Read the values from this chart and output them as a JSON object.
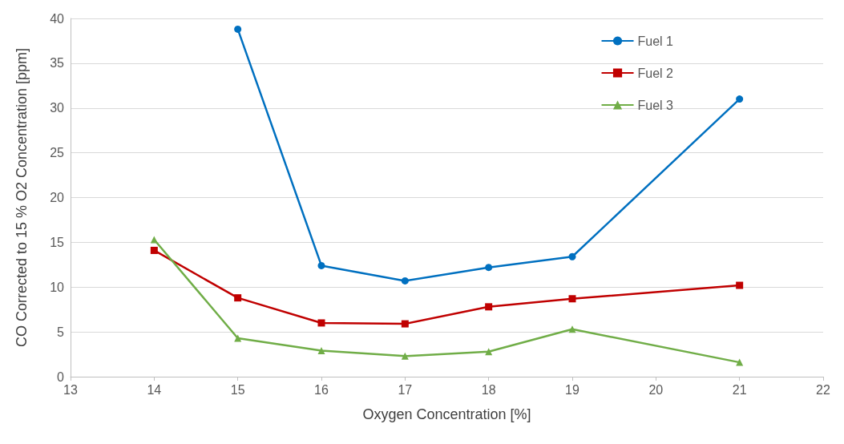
{
  "chart_data": {
    "type": "line",
    "xlabel": "Oxygen Concentration [%]",
    "ylabel": "CO Corrected to 15 % O2 Concentration [ppm]",
    "xlim": [
      13,
      22
    ],
    "xticks": [
      13,
      14,
      15,
      16,
      17,
      18,
      19,
      20,
      21,
      22
    ],
    "ylim": [
      0,
      40
    ],
    "yticks": [
      0,
      5,
      10,
      15,
      20,
      25,
      30,
      35,
      40
    ],
    "grid": "y",
    "legend": "top right",
    "series": [
      {
        "name": "Fuel 1",
        "color": "#0070c0",
        "marker": "circle",
        "x": [
          15,
          16,
          17,
          18,
          19,
          21
        ],
        "values": [
          38.8,
          12.4,
          10.7,
          12.2,
          13.4,
          31.0
        ]
      },
      {
        "name": "Fuel 2",
        "color": "#c00000",
        "marker": "square",
        "x": [
          14,
          15,
          16,
          17,
          18,
          19,
          21
        ],
        "values": [
          14.1,
          8.8,
          6.0,
          5.9,
          7.8,
          8.7,
          10.2
        ]
      },
      {
        "name": "Fuel 3",
        "color": "#70ad47",
        "marker": "triangle",
        "x": [
          14,
          15,
          16,
          17,
          18,
          19,
          21
        ],
        "values": [
          15.3,
          4.3,
          2.9,
          2.3,
          2.8,
          5.3,
          1.6
        ]
      }
    ]
  }
}
